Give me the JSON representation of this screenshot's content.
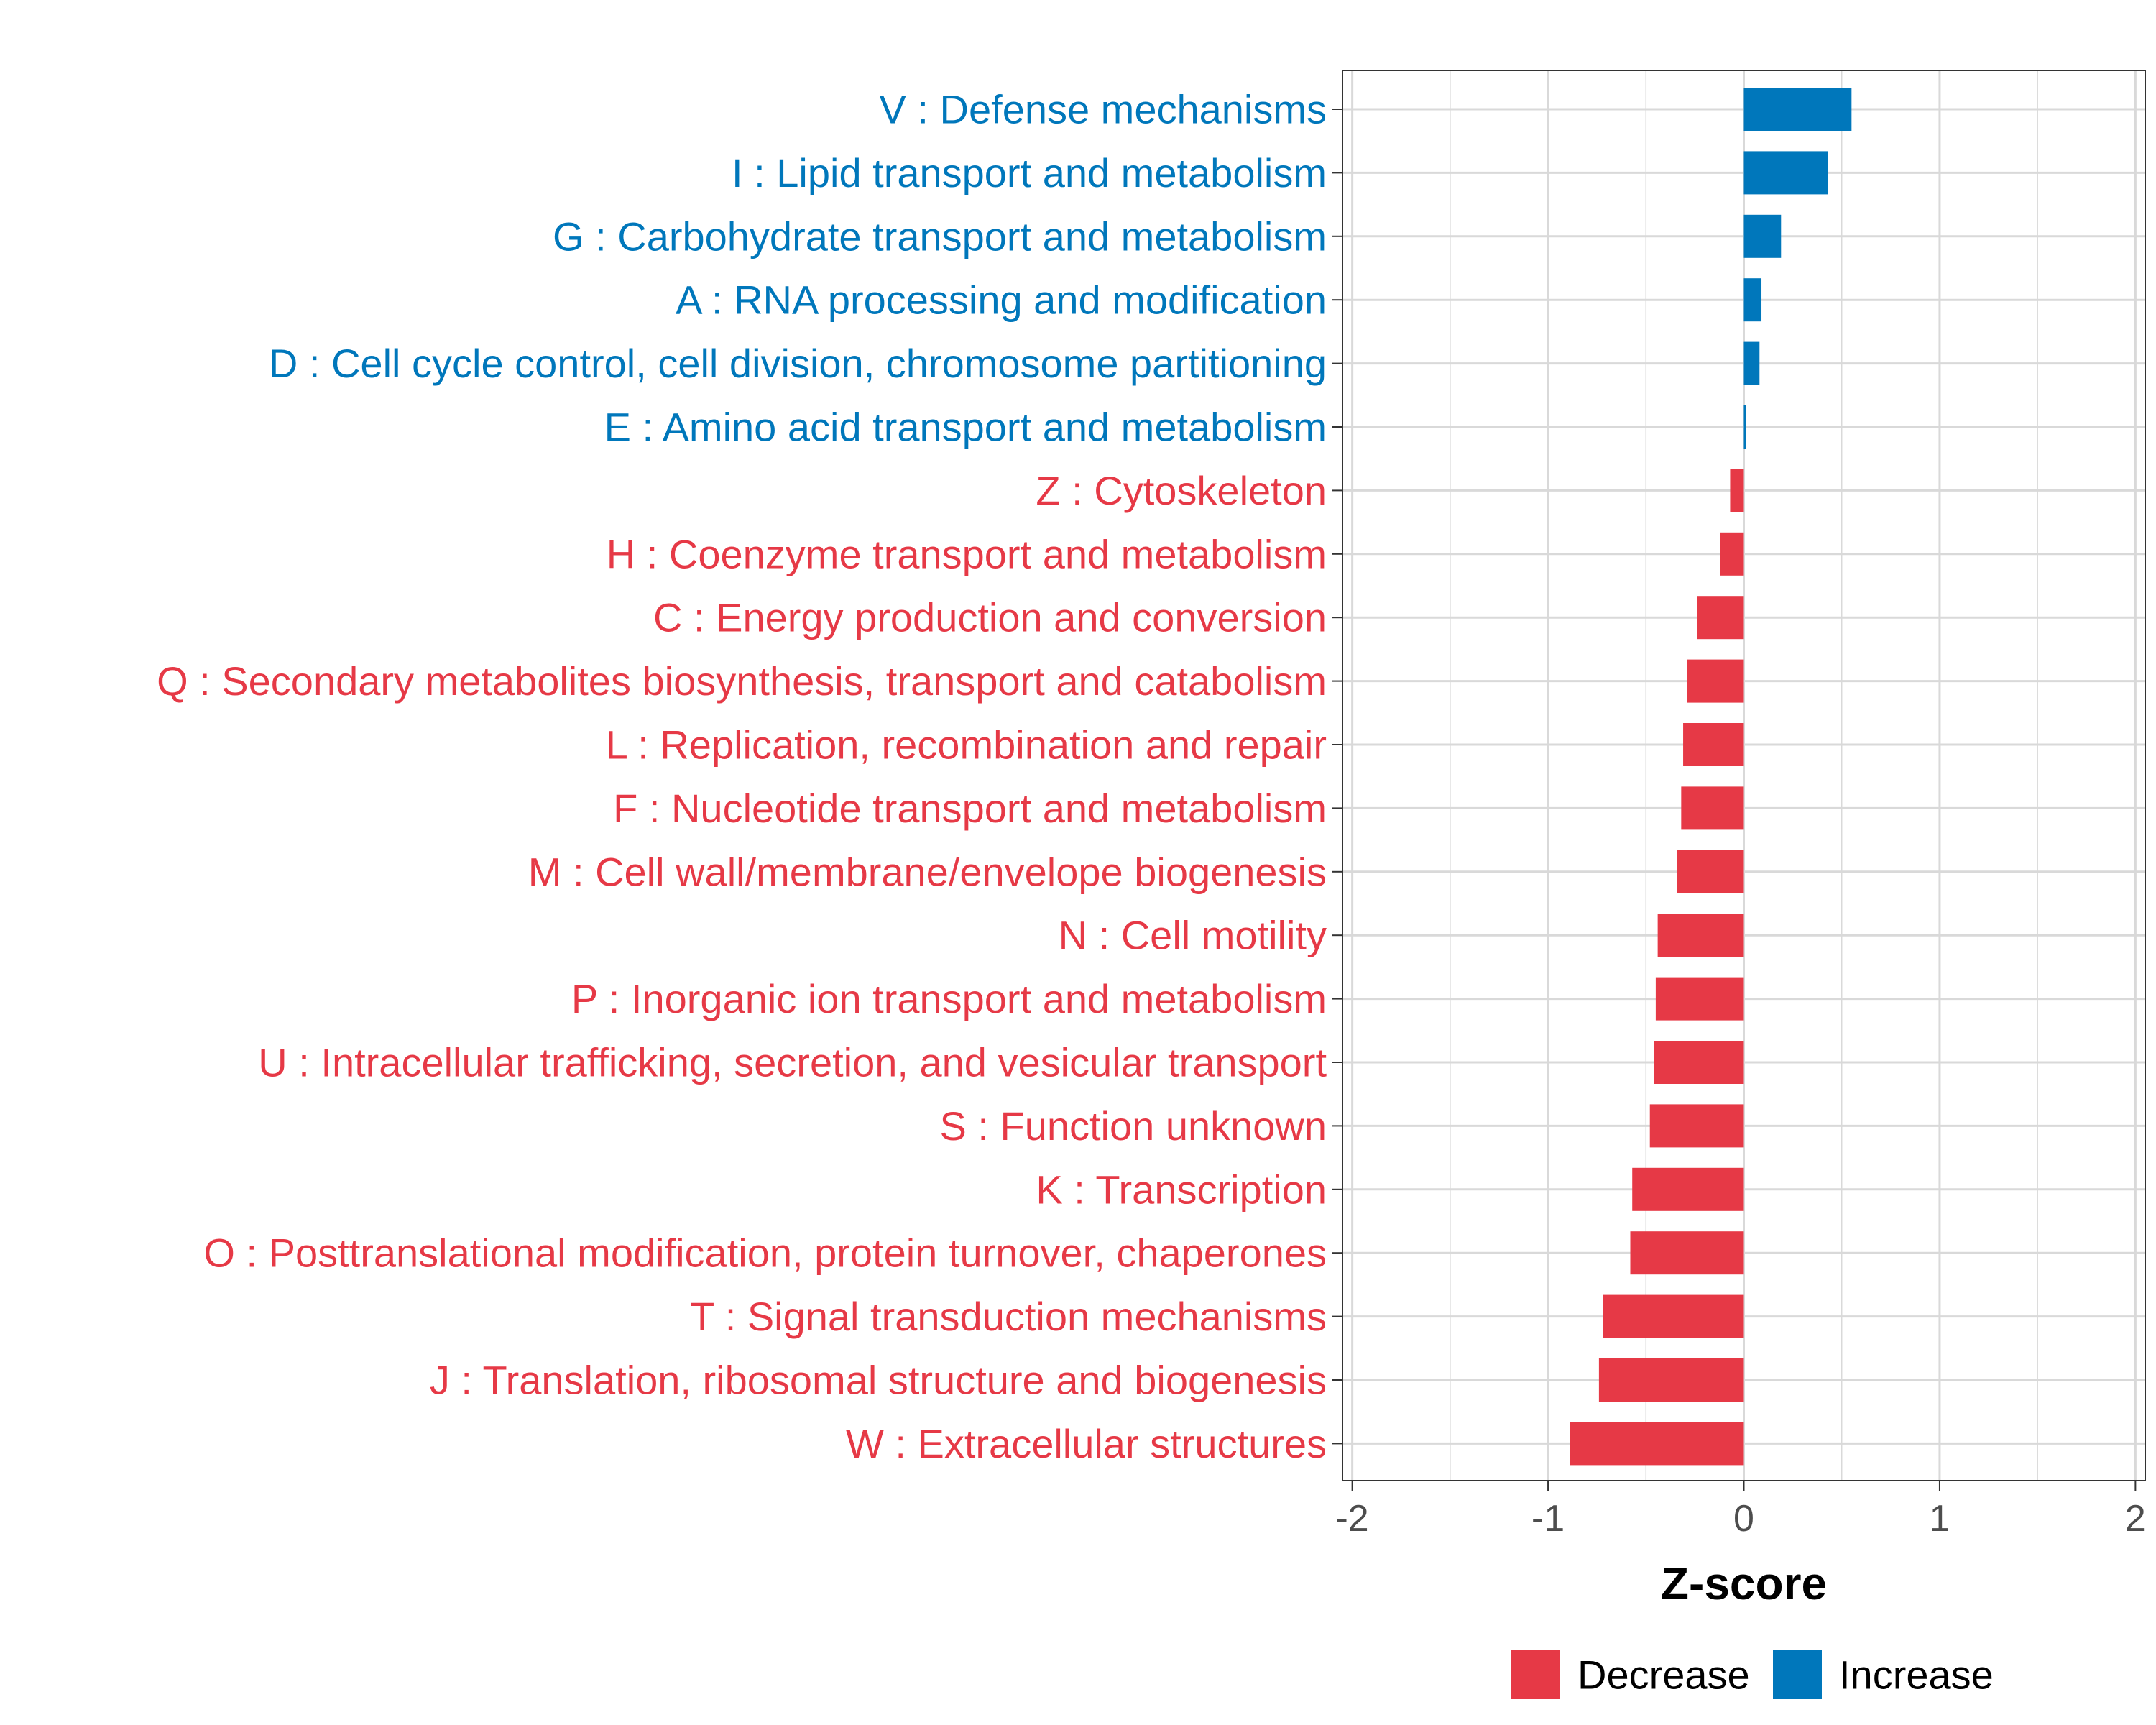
{
  "chart_data": {
    "type": "bar",
    "orientation": "horizontal",
    "xlabel": "Z-score",
    "xlim": [
      -2.05,
      2.05
    ],
    "xticks": [
      -2,
      -1,
      0,
      1,
      2
    ],
    "xtick_labels": [
      "-2",
      "-1",
      "0",
      "1",
      "2"
    ],
    "grid": true,
    "legend_position": "bottom",
    "legend": [
      {
        "name": "Decrease",
        "color": "#E63946"
      },
      {
        "name": "Increase",
        "color": "#0077BB"
      }
    ],
    "categories": [
      "V : Defense mechanisms",
      "I : Lipid transport and metabolism",
      "G : Carbohydrate transport and metabolism",
      "A : RNA processing and modification",
      "D : Cell cycle control, cell division, chromosome partitioning",
      "E : Amino acid transport and metabolism",
      "Z : Cytoskeleton",
      "H : Coenzyme transport and metabolism",
      "C : Energy production and conversion",
      "Q : Secondary metabolites biosynthesis, transport and catabolism",
      "L : Replication, recombination and repair",
      "F : Nucleotide transport and metabolism",
      "M : Cell wall/membrane/envelope biogenesis",
      "N : Cell motility",
      "P : Inorganic ion transport and metabolism",
      "U : Intracellular trafficking, secretion, and vesicular transport",
      "S : Function unknown",
      "K : Transcription",
      "O : Posttranslational modification, protein turnover, chaperones",
      "T : Signal transduction mechanisms",
      "J : Translation, ribosomal structure and biogenesis",
      "W : Extracellular structures"
    ],
    "values": [
      0.55,
      0.43,
      0.19,
      0.09,
      0.08,
      0.01,
      -0.07,
      -0.12,
      -0.24,
      -0.29,
      -0.31,
      -0.32,
      -0.34,
      -0.44,
      -0.45,
      -0.46,
      -0.48,
      -0.57,
      -0.58,
      -0.72,
      -0.74,
      -0.89
    ],
    "groups": [
      "Increase",
      "Increase",
      "Increase",
      "Increase",
      "Increase",
      "Increase",
      "Decrease",
      "Decrease",
      "Decrease",
      "Decrease",
      "Decrease",
      "Decrease",
      "Decrease",
      "Decrease",
      "Decrease",
      "Decrease",
      "Decrease",
      "Decrease",
      "Decrease",
      "Decrease",
      "Decrease",
      "Decrease"
    ]
  },
  "colors": {
    "decrease": "#E63946",
    "increase": "#0077BB",
    "grid": "#D9D9D9",
    "panel_border": "#333333"
  }
}
